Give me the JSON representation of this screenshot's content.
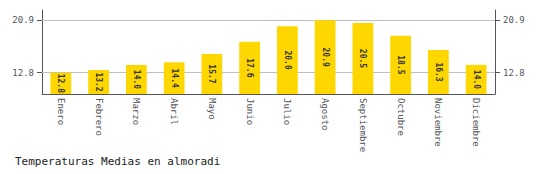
{
  "chart_data": {
    "type": "bar",
    "title": "Temperaturas Medias en almoradi",
    "categories": [
      "Enero",
      "Febrero",
      "Marzo",
      "Abril",
      "Mayo",
      "Junio",
      "Julio",
      "Agosto",
      "Septiembre",
      "Octubre",
      "Noviembre",
      "Diciembre"
    ],
    "values": [
      12.8,
      13.2,
      14.0,
      14.4,
      15.7,
      17.6,
      20.0,
      20.9,
      20.5,
      18.5,
      16.3,
      14.0
    ],
    "value_labels": [
      "12.8",
      "13.2",
      "14.0",
      "14.4",
      "15.7",
      "17.6",
      "20.0",
      "20.9",
      "20.5",
      "18.5",
      "16.3",
      "14.0"
    ],
    "data_labels": true,
    "color": "#FFD700",
    "ylim": [
      9.5,
      22.5
    ],
    "yticks": [
      12.8,
      20.9
    ],
    "y2lim": [
      9.5,
      22.5
    ],
    "y2ticks": [
      12.8,
      20.9
    ],
    "grid": true
  }
}
